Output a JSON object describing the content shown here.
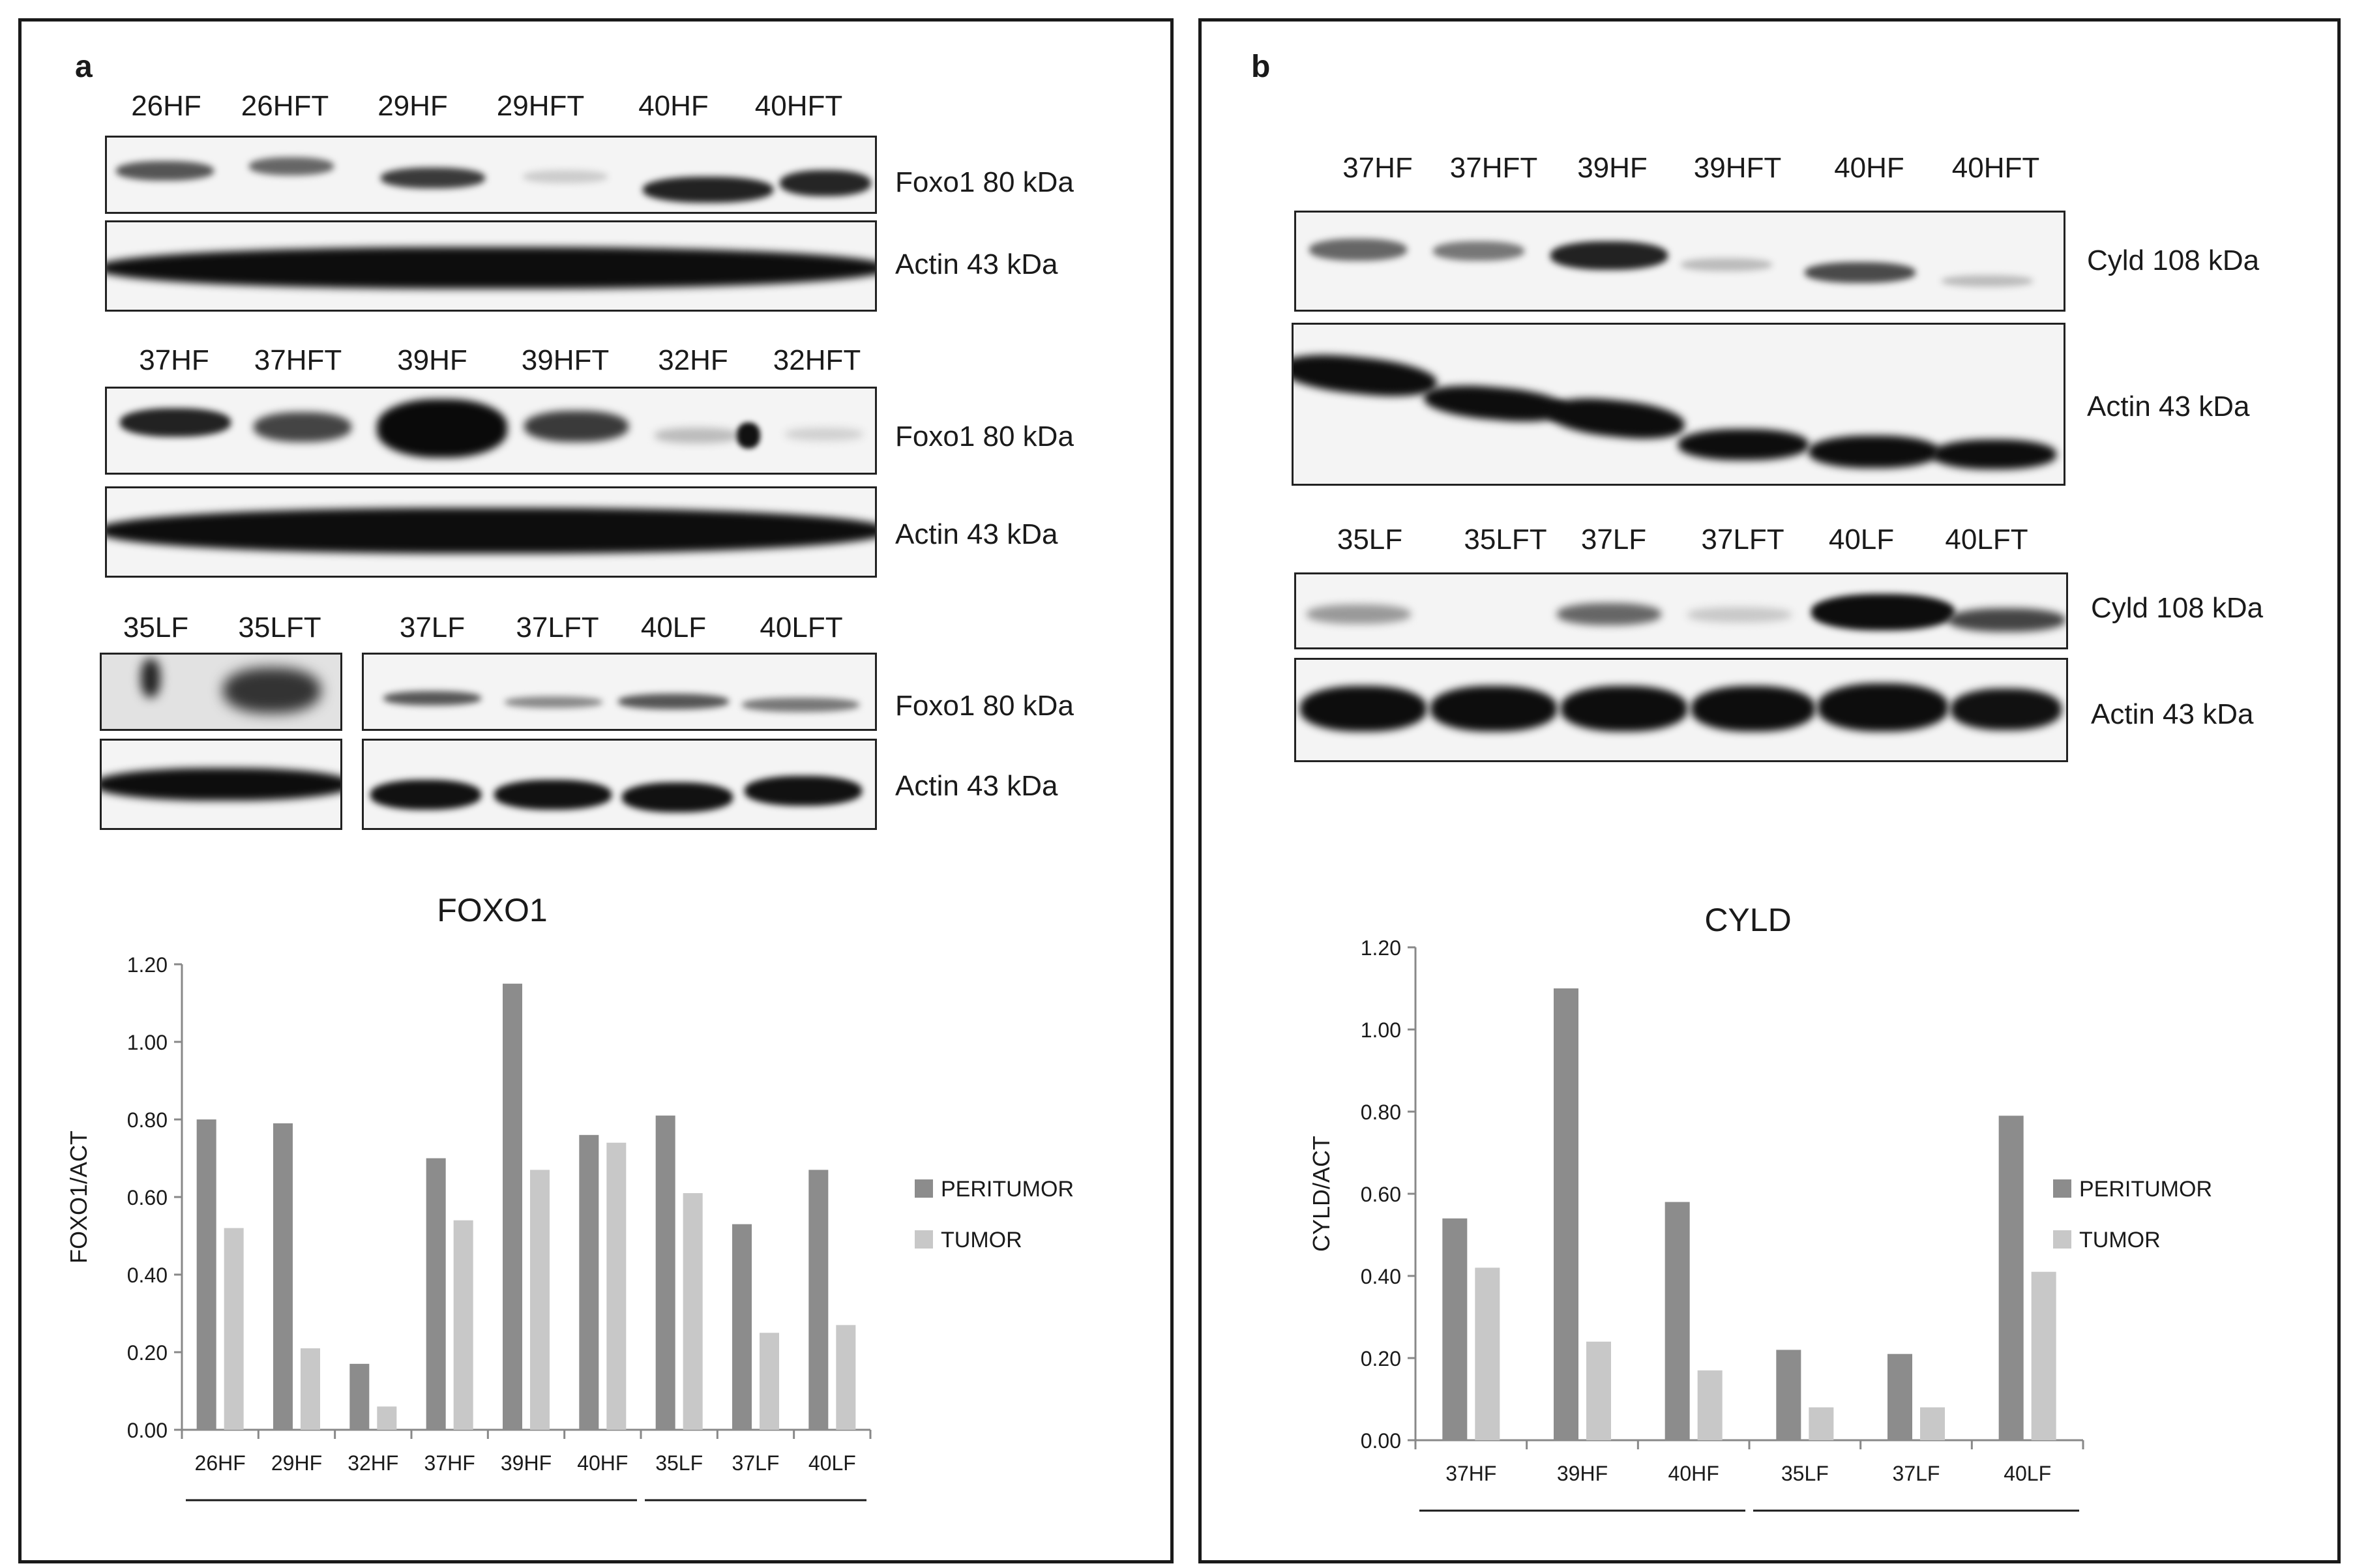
{
  "panel_a": {
    "label": "a",
    "row1": {
      "lanes": [
        "26HF",
        "26HFT",
        "29HF",
        "29HFT",
        "40HF",
        "40HFT"
      ],
      "foxo_label": "Foxo1 80 kDa",
      "actin_label": "Actin  43 kDa"
    },
    "row2": {
      "lanes": [
        "37HF",
        "37HFT",
        "39HF",
        "39HFT",
        "32HF",
        "32HFT"
      ],
      "foxo_label": "Foxo1 80 kDa",
      "actin_label": "Actin  43 kDa"
    },
    "row3": {
      "lanes": [
        "35LF",
        "35LFT",
        "37LF",
        "37LFT",
        "40LF",
        "40LFT"
      ],
      "foxo_label": "Foxo1 80 kDa",
      "actin_label": "Actin  43 kDa"
    }
  },
  "panel_b": {
    "label": "b",
    "row1": {
      "lanes": [
        "37HF",
        "37HFT",
        "39HF",
        "39HFT",
        "40HF",
        "40HFT"
      ],
      "cyld_label": "Cyld  108 kDa",
      "actin_label": "Actin  43 kDa"
    },
    "row2": {
      "lanes": [
        "35LF",
        "35LFT",
        "37LF",
        "37LFT",
        "40LF",
        "40LFT"
      ],
      "cyld_label": "Cyld  108 kDa",
      "actin_label": "Actin  43 kDa"
    }
  },
  "chart_data": [
    {
      "type": "bar",
      "title": "FOXO1",
      "ylabel": "FOXO1/ACT",
      "xlabel": "",
      "categories": [
        "26HF",
        "29HF",
        "32HF",
        "37HF",
        "39HF",
        "40HF",
        "35LF",
        "37LF",
        "40LF"
      ],
      "series": [
        {
          "name": "PERITUMOR",
          "values": [
            0.8,
            0.79,
            0.17,
            0.7,
            1.15,
            0.76,
            0.81,
            0.53,
            0.67
          ],
          "color": "#8c8c8c"
        },
        {
          "name": "TUMOR",
          "values": [
            0.52,
            0.21,
            0.06,
            0.54,
            0.67,
            0.74,
            0.61,
            0.25,
            0.27
          ],
          "color": "#c8c8c8"
        }
      ],
      "yticks": [
        "0.00",
        "0.20",
        "0.40",
        "0.60",
        "0.80",
        "1.00",
        "1.20"
      ],
      "ylim": [
        0,
        1.2
      ],
      "legend": "right"
    },
    {
      "type": "bar",
      "title": "CYLD",
      "ylabel": "CYLD/ACT",
      "xlabel": "",
      "categories": [
        "37HF",
        "39HF",
        "40HF",
        "35LF",
        "37LF",
        "40LF"
      ],
      "series": [
        {
          "name": "PERITUMOR",
          "values": [
            0.54,
            1.1,
            0.58,
            0.22,
            0.21,
            0.79
          ],
          "color": "#8c8c8c"
        },
        {
          "name": "TUMOR",
          "values": [
            0.42,
            0.24,
            0.17,
            0.08,
            0.08,
            0.41
          ],
          "color": "#c8c8c8"
        }
      ],
      "yticks": [
        "0.00",
        "0.20",
        "0.40",
        "0.60",
        "0.80",
        "1.00",
        "1.20"
      ],
      "ylim": [
        0,
        1.2
      ],
      "legend": "right"
    }
  ]
}
